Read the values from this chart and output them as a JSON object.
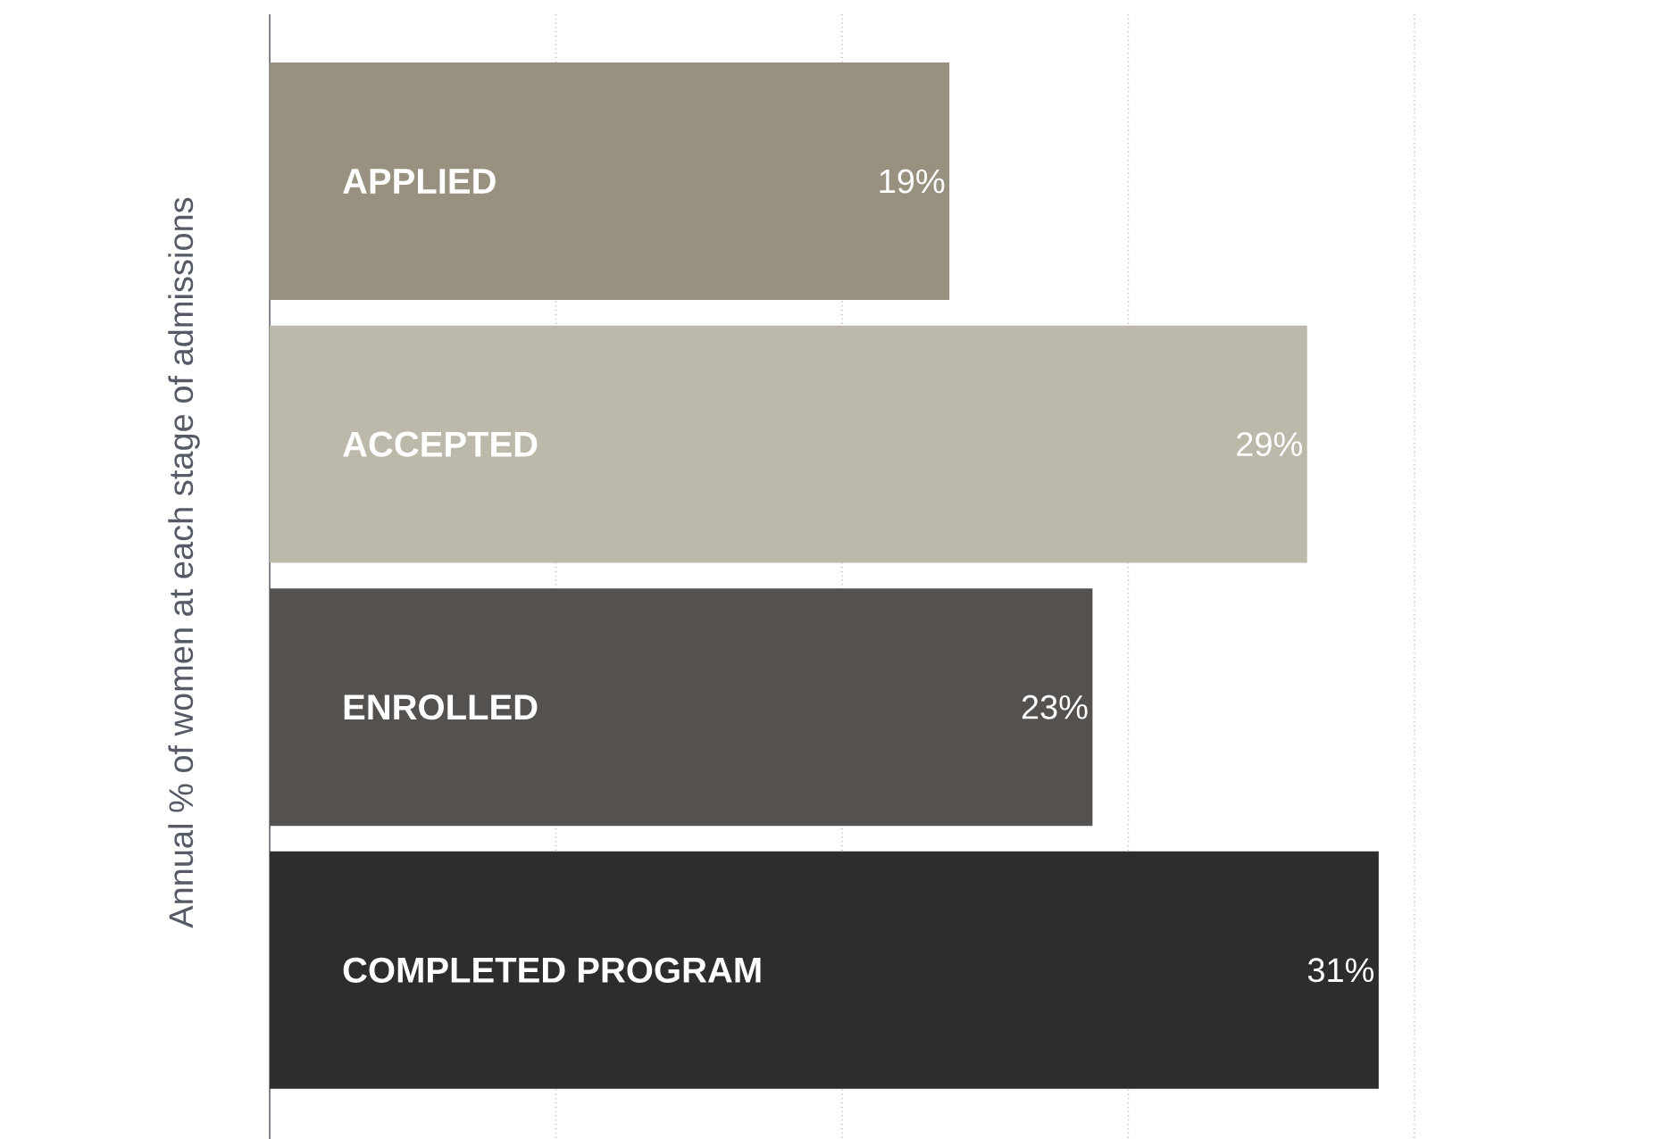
{
  "chart_data": {
    "type": "bar",
    "orientation": "horizontal",
    "ylabel": "Annual % of women at each stage of admissions",
    "categories": [
      "APPLIED",
      "ACCEPTED",
      "ENROLLED",
      "COMPLETED PROGRAM"
    ],
    "values": [
      19,
      29,
      23,
      31
    ],
    "value_labels": [
      "19%",
      "29%",
      "23%",
      "31%"
    ],
    "colors": [
      "#99917f",
      "#bcb9aa",
      "#55514e",
      "#2e2d2d"
    ],
    "xticks": [
      {
        "value": 8,
        "label": null
      },
      {
        "value": 16,
        "label": null
      },
      {
        "value": 24,
        "label": null
      },
      {
        "value": 32,
        "label": null
      }
    ],
    "grid": "x"
  }
}
